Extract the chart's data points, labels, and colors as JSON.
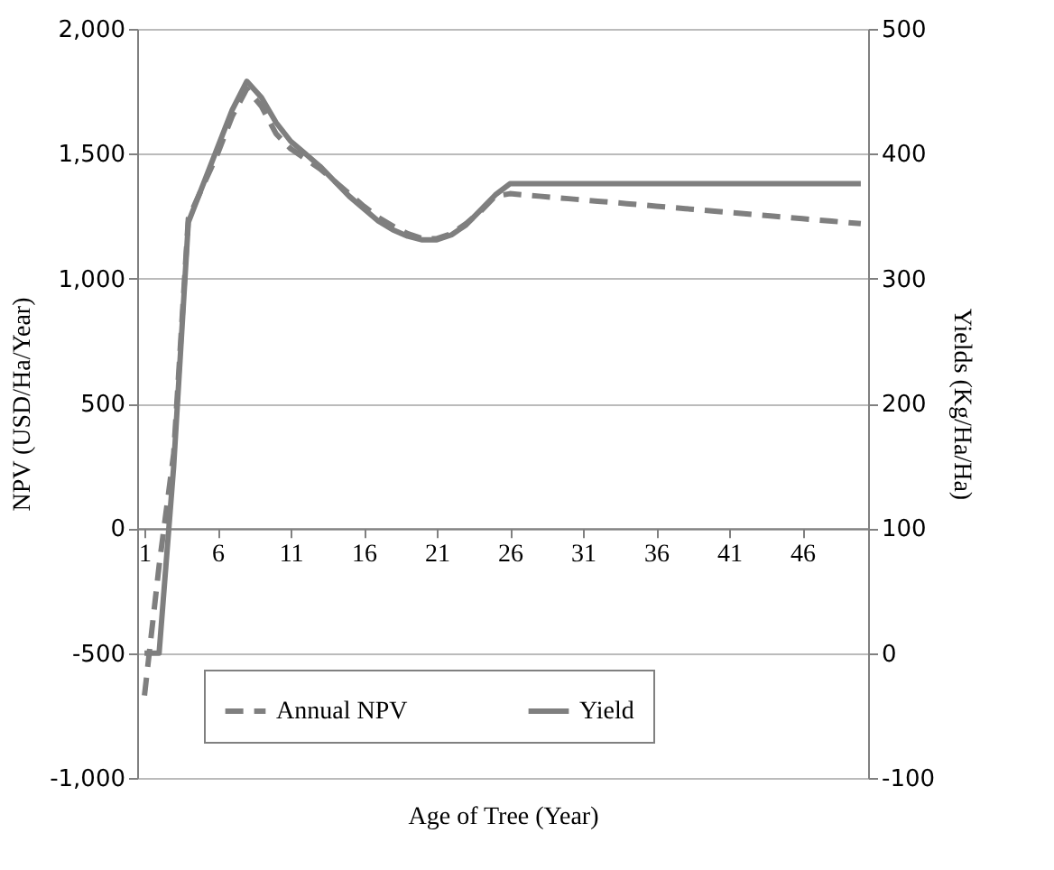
{
  "chart_data": {
    "type": "line",
    "xlabel": "Age of Tree (Year)",
    "ylabel": "NPV (USD/Ha/Year)",
    "y2label": "Yields (Kg/Ha/Ha)",
    "x": [
      1,
      2,
      3,
      4,
      5,
      6,
      7,
      8,
      9,
      10,
      11,
      12,
      13,
      14,
      15,
      16,
      17,
      18,
      19,
      20,
      21,
      22,
      23,
      24,
      25,
      26,
      27,
      28,
      29,
      30,
      31,
      32,
      33,
      34,
      35,
      36,
      37,
      38,
      39,
      40,
      41,
      42,
      43,
      44,
      45,
      46,
      47,
      48,
      49,
      50
    ],
    "series": [
      {
        "name": "Annual NPV",
        "color": "#7f7f7f",
        "line_style": "dashed",
        "values": [
          -670,
          -150,
          300,
          1240,
          1370,
          1500,
          1650,
          1760,
          1690,
          1580,
          1520,
          1480,
          1440,
          1390,
          1340,
          1290,
          1245,
          1210,
          1180,
          1160,
          1160,
          1180,
          1220,
          1270,
          1330,
          1340,
          1335,
          1330,
          1325,
          1320,
          1315,
          1310,
          1305,
          1300,
          1295,
          1290,
          1285,
          1280,
          1275,
          1270,
          1265,
          1260,
          1255,
          1250,
          1245,
          1240,
          1235,
          1230,
          1225,
          1220
        ]
      },
      {
        "name": "Yield",
        "color": "#7f7f7f",
        "line_style": "solid",
        "axis": "y2",
        "values": [
          0,
          0,
          150,
          345,
          375,
          405,
          435,
          458,
          445,
          425,
          410,
          400,
          390,
          378,
          366,
          356,
          346,
          339,
          334,
          331,
          331,
          335,
          343,
          355,
          367,
          376,
          376,
          376,
          376,
          376,
          376,
          376,
          376,
          376,
          376,
          376,
          376,
          376,
          376,
          376,
          376,
          376,
          376,
          376,
          376,
          376,
          376,
          376,
          376,
          376
        ]
      }
    ],
    "xlim": [
      0.5,
      50.5
    ],
    "xticks": [
      1,
      6,
      11,
      16,
      21,
      26,
      31,
      36,
      41,
      46
    ],
    "ylim": [
      -1000,
      2000
    ],
    "yticks": [
      {
        "value": -1000,
        "label": "-1,000"
      },
      -500,
      0,
      500,
      {
        "value": 1000,
        "label": "1,000"
      },
      {
        "value": 1500,
        "label": "1,500"
      },
      {
        "value": 2000,
        "label": "2,000"
      }
    ],
    "y2lim": [
      -100,
      500
    ],
    "y2ticks": [
      -100,
      0,
      100,
      200,
      300,
      400,
      500
    ],
    "grid": "y",
    "legend": "bottom",
    "marker": "none"
  }
}
